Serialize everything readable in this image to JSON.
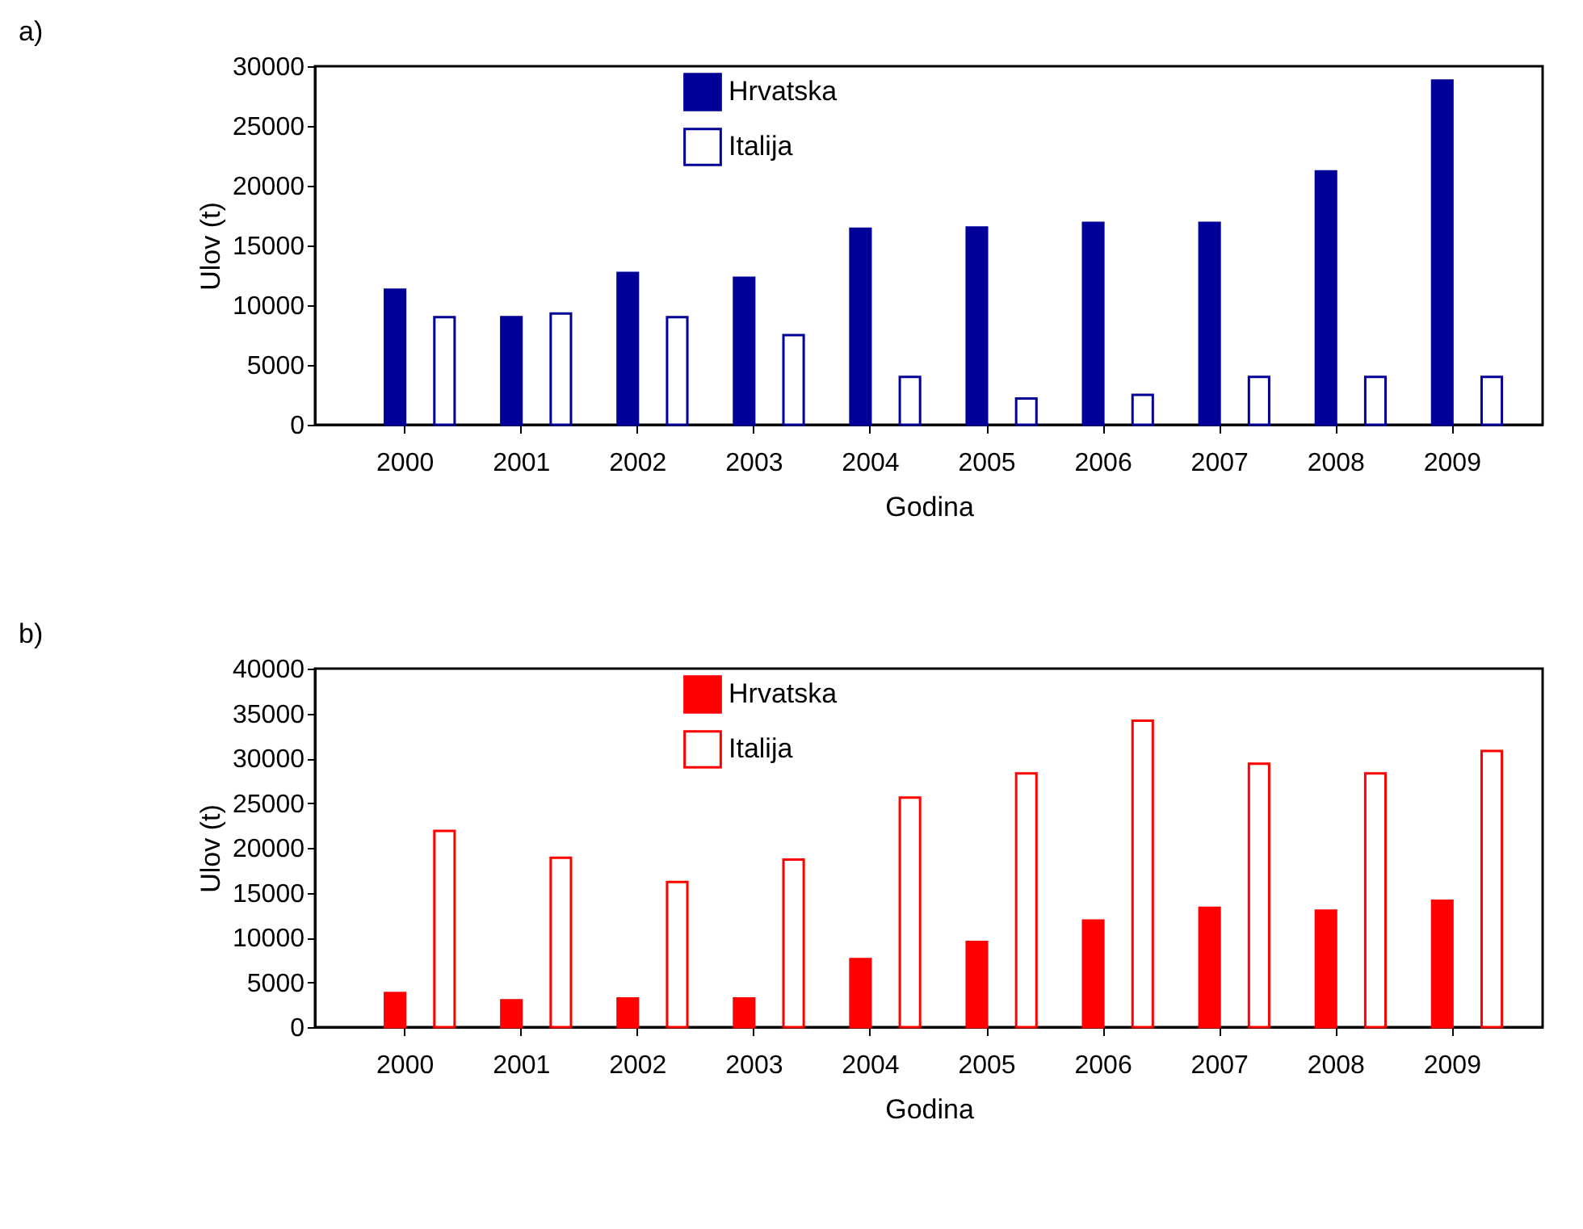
{
  "chart_data": [
    {
      "type": "bar",
      "annotations": [
        "a)"
      ],
      "xlabel": "Godina",
      "ylabel": "Ulov (t)",
      "categories": [
        "2000",
        "2001",
        "2002",
        "2003",
        "2004",
        "2005",
        "2006",
        "2007",
        "2008",
        "2009"
      ],
      "series": [
        {
          "name": "Hrvatska",
          "color": "#000099",
          "values": [
            11300,
            9000,
            12700,
            12300,
            16400,
            16500,
            16900,
            16900,
            21200,
            28800
          ]
        },
        {
          "name": "Italija",
          "color": "#000099",
          "values": [
            9000,
            9300,
            9000,
            7500,
            4000,
            2200,
            2500,
            4000,
            4000,
            4000
          ]
        }
      ],
      "ylim": [
        0,
        30000
      ],
      "yticks": [
        0,
        5000,
        10000,
        15000,
        20000,
        25000,
        30000
      ],
      "grid": false,
      "legend": "top"
    },
    {
      "type": "bar",
      "annotations": [
        "b)"
      ],
      "xlabel": "Godina",
      "ylabel": "Ulov (t)",
      "categories": [
        "2000",
        "2001",
        "2002",
        "2003",
        "2004",
        "2005",
        "2006",
        "2007",
        "2008",
        "2009"
      ],
      "series": [
        {
          "name": "Hrvatska",
          "color": "#ff0000",
          "values": [
            3800,
            3000,
            3200,
            3200,
            7600,
            9500,
            11900,
            13300,
            13000,
            14100
          ]
        },
        {
          "name": "Italija",
          "color": "#ff0000",
          "values": [
            21900,
            18900,
            16200,
            18700,
            25600,
            28300,
            34200,
            29400,
            28300,
            30800
          ]
        }
      ],
      "ylim": [
        0,
        40000
      ],
      "yticks": [
        0,
        5000,
        10000,
        15000,
        20000,
        25000,
        30000,
        35000,
        40000
      ],
      "grid": false,
      "legend": "top"
    }
  ]
}
